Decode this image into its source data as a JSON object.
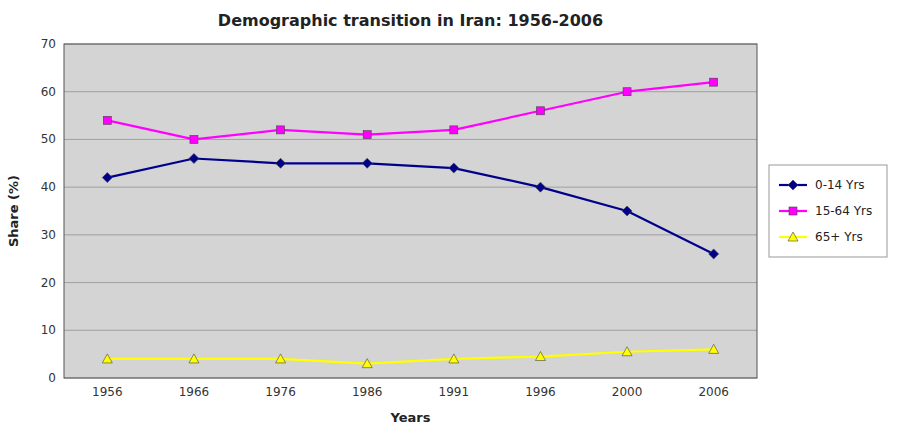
{
  "chart_data": {
    "type": "line",
    "title": "Demographic transition in Iran: 1956-2006",
    "xlabel": "Years",
    "ylabel": "Share (%)",
    "categories": [
      "1956",
      "1966",
      "1976",
      "1986",
      "1991",
      "1996",
      "2000",
      "2006"
    ],
    "series": [
      {
        "name": "0-14 Yrs",
        "color": "#00008B",
        "marker": "diamond",
        "values": [
          42,
          46,
          45,
          45,
          44,
          40,
          35,
          26
        ]
      },
      {
        "name": "15-64 Yrs",
        "color": "#FF00FF",
        "marker": "square",
        "values": [
          54,
          50,
          52,
          51,
          52,
          56,
          60,
          62
        ]
      },
      {
        "name": "65+ Yrs",
        "color": "#FFFF00",
        "marker": "triangle",
        "values": [
          4,
          4,
          4,
          3,
          4,
          4.5,
          5.5,
          6
        ]
      }
    ],
    "ylim": [
      0,
      70
    ],
    "yticks": [
      0,
      10,
      20,
      30,
      40,
      50,
      60,
      70
    ],
    "grid": true,
    "legend": "right"
  }
}
